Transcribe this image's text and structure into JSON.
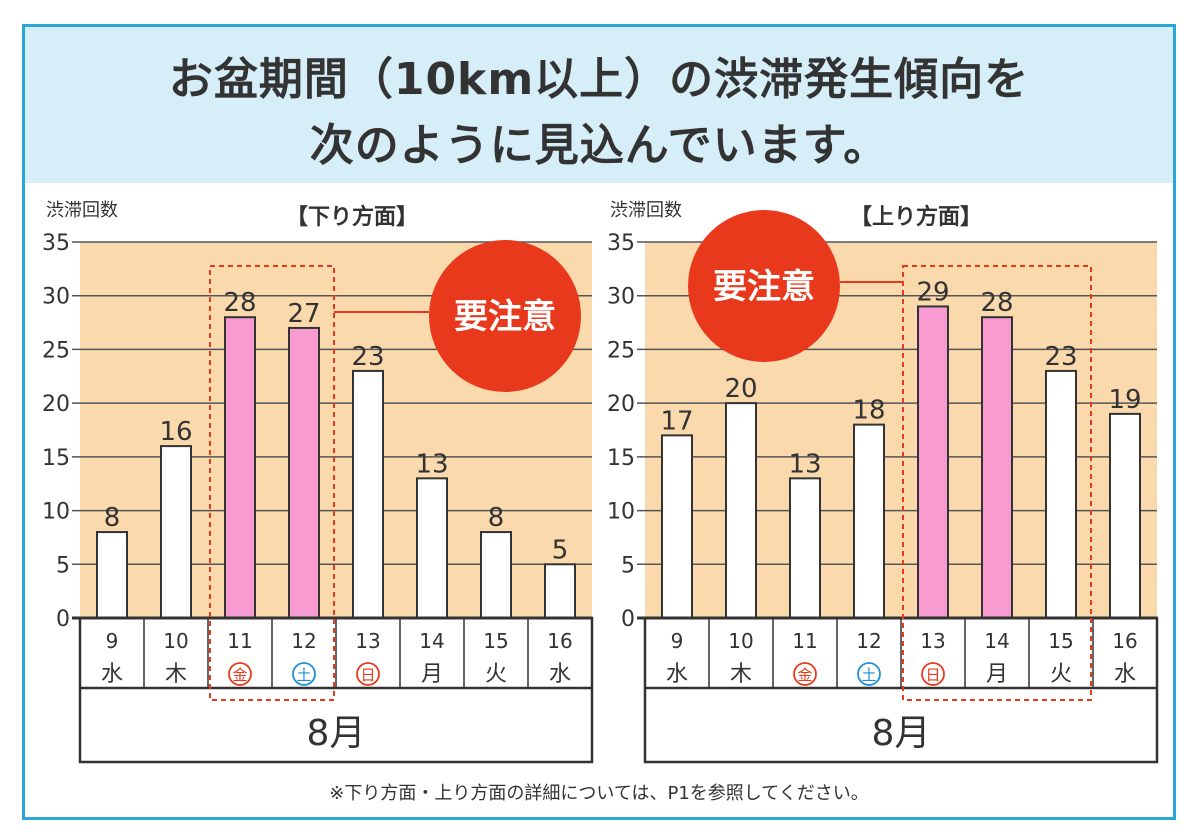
{
  "header": {
    "title_line1": "お盆期間（10km以上）の渋滞発生傾向を",
    "title_line2": "次のように見込んでいます。"
  },
  "footnote": "※下り方面・上り方面の詳細については、P1を参照してください。",
  "callout_text": "要注意",
  "colors": {
    "plot_bg": "#fad9ad",
    "highlight_bar": "#f79bd1",
    "normal_bar": "#ffffff",
    "callout": "#e8391d",
    "highlight_box": "#e8391d",
    "frame": "#2aa7d6",
    "header_bg": "#d5eef8",
    "saturday": "#1e8fd6",
    "holiday": "#e8391d"
  },
  "chart_data": [
    {
      "type": "bar",
      "title": "【下り方面】",
      "ylabel": "渋滞回数",
      "ylim": [
        0,
        35
      ],
      "yticks": [
        "0",
        "5",
        "10",
        "15",
        "20",
        "25",
        "30",
        "35"
      ],
      "month_label": "8月",
      "categories": [
        {
          "day": "9",
          "weekday": "水",
          "style": "normal"
        },
        {
          "day": "10",
          "weekday": "木",
          "style": "normal"
        },
        {
          "day": "11",
          "weekday": "金",
          "style": "holiday"
        },
        {
          "day": "12",
          "weekday": "土",
          "style": "saturday"
        },
        {
          "day": "13",
          "weekday": "日",
          "style": "holiday"
        },
        {
          "day": "14",
          "weekday": "月",
          "style": "normal"
        },
        {
          "day": "15",
          "weekday": "火",
          "style": "normal"
        },
        {
          "day": "16",
          "weekday": "水",
          "style": "normal"
        }
      ],
      "values": [
        8,
        16,
        28,
        27,
        23,
        13,
        8,
        5
      ],
      "value_labels": [
        "8",
        "16",
        "28",
        "27",
        "23",
        "13",
        "8",
        "5"
      ],
      "highlighted": [
        2,
        3
      ],
      "annotation": "要注意"
    },
    {
      "type": "bar",
      "title": "【上り方面】",
      "ylabel": "渋滞回数",
      "ylim": [
        0,
        35
      ],
      "yticks": [
        "0",
        "5",
        "10",
        "15",
        "20",
        "25",
        "30",
        "35"
      ],
      "month_label": "8月",
      "categories": [
        {
          "day": "9",
          "weekday": "水",
          "style": "normal"
        },
        {
          "day": "10",
          "weekday": "木",
          "style": "normal"
        },
        {
          "day": "11",
          "weekday": "金",
          "style": "holiday"
        },
        {
          "day": "12",
          "weekday": "土",
          "style": "saturday"
        },
        {
          "day": "13",
          "weekday": "日",
          "style": "holiday"
        },
        {
          "day": "14",
          "weekday": "月",
          "style": "normal"
        },
        {
          "day": "15",
          "weekday": "火",
          "style": "normal"
        },
        {
          "day": "16",
          "weekday": "水",
          "style": "normal"
        }
      ],
      "values": [
        17,
        20,
        13,
        18,
        29,
        28,
        23,
        19
      ],
      "value_labels": [
        "17",
        "20",
        "13",
        "18",
        "29",
        "28",
        "23",
        "19"
      ],
      "highlighted": [
        4,
        5
      ],
      "highlight_box": [
        4,
        6
      ],
      "annotation": "要注意"
    }
  ]
}
